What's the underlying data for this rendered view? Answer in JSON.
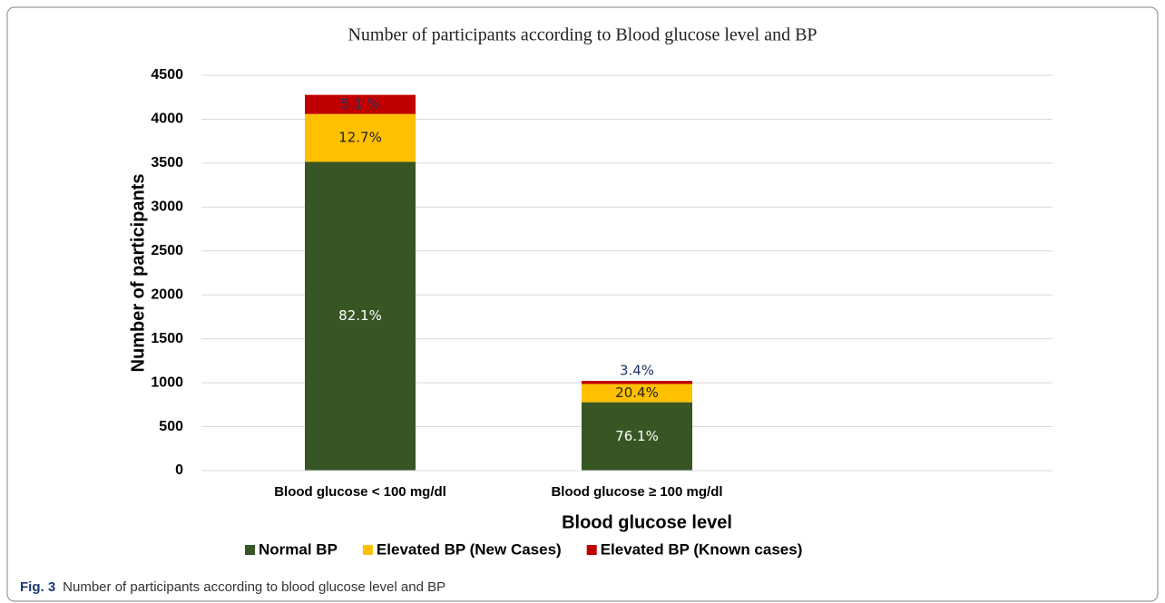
{
  "chart_data": {
    "type": "stacked_bar",
    "title": "Number of participants according to Blood glucose level and BP",
    "xlabel": "Blood glucose level",
    "ylabel": "Number of participants",
    "categories": [
      "Blood glucose < 100 mg/dl",
      "Blood glucose ≥ 100 mg/dl"
    ],
    "series": [
      {
        "name": "Normal BP",
        "color": "#375623",
        "label_color": "#ffffff",
        "values": [
          3515,
          778
        ],
        "segment_labels": [
          "82.1%",
          "76.1%"
        ]
      },
      {
        "name": "Elevated BP (New Cases)",
        "color": "#ffc000",
        "label_color": "#222222",
        "values": [
          544,
          208
        ],
        "segment_labels": [
          "12.7%",
          "20.4%"
        ]
      },
      {
        "name": "Elevated BP (Known cases)",
        "color": "#c00000",
        "label_color": "#1f3864",
        "values": [
          218,
          35
        ],
        "segment_labels": [
          "5.1 %",
          "3.4%"
        ]
      }
    ],
    "ylim": [
      0,
      4500
    ],
    "yticks": [
      0,
      500,
      1000,
      1500,
      2000,
      2500,
      3000,
      3500,
      4000,
      4500
    ],
    "grid": true,
    "legend": "bottom"
  },
  "caption": {
    "label": "Fig. 3",
    "text": "Number of participants according to blood glucose level and BP"
  }
}
